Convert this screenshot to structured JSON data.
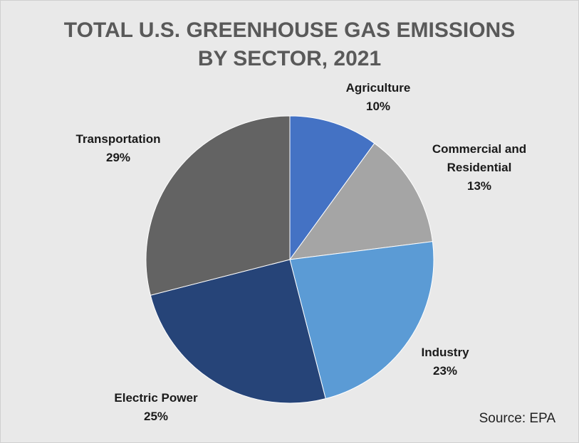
{
  "chart_data": {
    "type": "pie",
    "title_lines": [
      "TOTAL U.S. GREENHOUSE GAS EMISSIONS",
      "BY SECTOR, 2021"
    ],
    "slices": [
      {
        "name": "Agriculture",
        "value": 10,
        "label": "10%",
        "color": "#4472c4"
      },
      {
        "name": "Commercial and Residential",
        "name_lines": [
          "Commercial and",
          "Residential"
        ],
        "value": 13,
        "label": "13%",
        "color": "#a5a5a5"
      },
      {
        "name": "Industry",
        "value": 23,
        "label": "23%",
        "color": "#5b9bd5"
      },
      {
        "name": "Electric Power",
        "value": 25,
        "label": "25%",
        "color": "#264478"
      },
      {
        "name": "Transportation",
        "value": 29,
        "label": "29%",
        "color": "#636363"
      }
    ],
    "source": "Source: EPA"
  }
}
